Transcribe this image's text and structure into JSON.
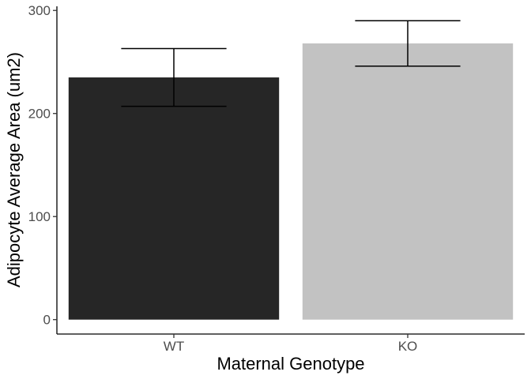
{
  "chart_data": {
    "type": "bar",
    "title": "",
    "xlabel": "Maternal Genotype",
    "ylabel": "Adipocyte Average Area (um2)",
    "categories": [
      "WT",
      "KO"
    ],
    "values": [
      235,
      268
    ],
    "error_low": [
      207,
      246
    ],
    "error_high": [
      263,
      290
    ],
    "bar_colors": [
      "#262626",
      "#c2c2c2"
    ],
    "ylim": [
      -14,
      304
    ],
    "yticks": [
      0,
      100,
      200,
      300
    ],
    "grid": false,
    "legend": "none"
  }
}
